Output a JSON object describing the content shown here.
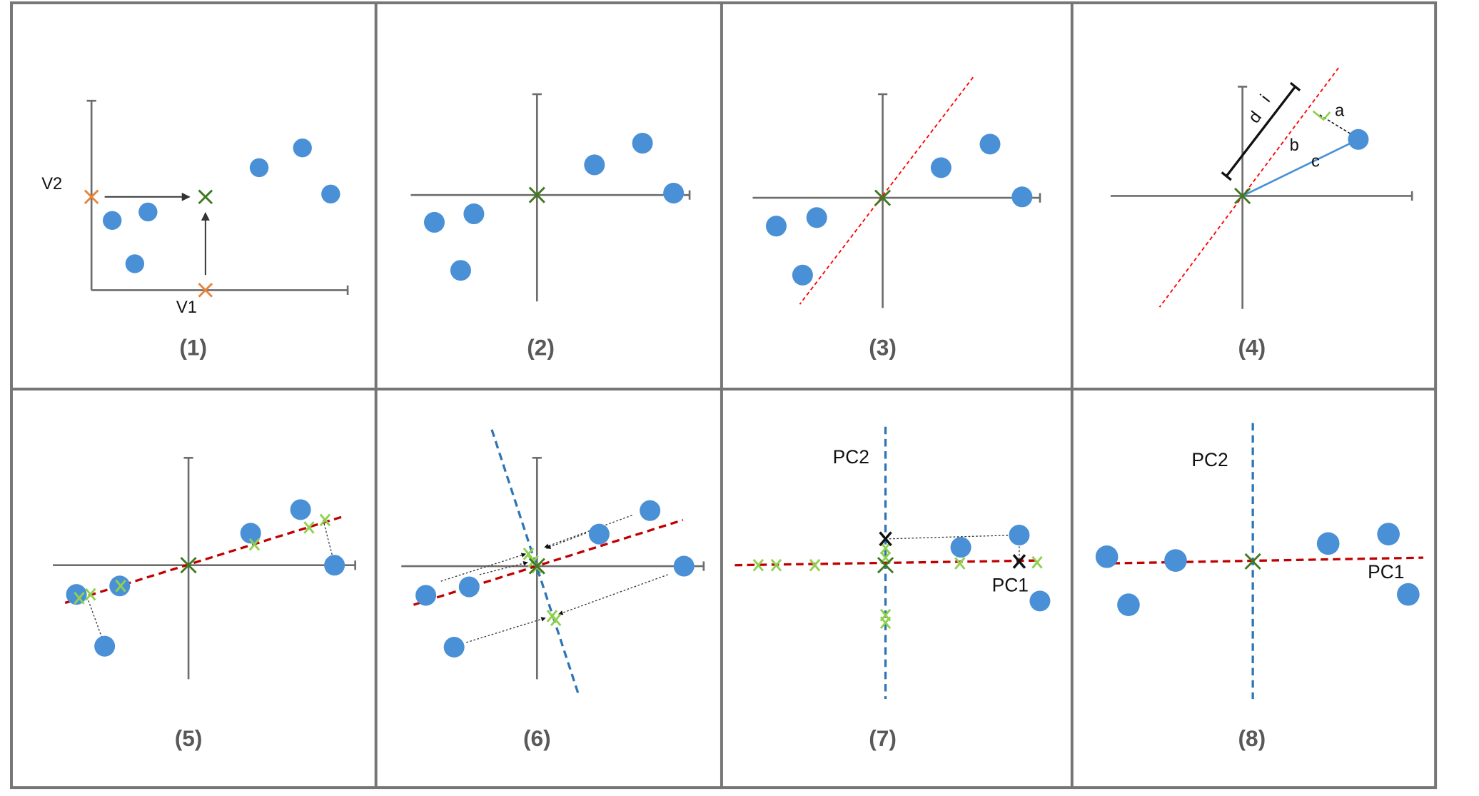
{
  "colors": {
    "grid": "#767676",
    "axis": "#6d6d6d",
    "point": "#4a90d6",
    "center_mark": "#3f7a1f",
    "mean_mark": "#e8843a",
    "projection_mark": "#8fd14f",
    "pc1_line": "#c00000",
    "pc2_line": "#2e75b6",
    "fit_line": "#ff0000",
    "right_angle": "#8fd14f",
    "text": "#111111",
    "caption": "#595959"
  },
  "panels": [
    {
      "caption": "(1)",
      "labels": {
        "v2": "V2",
        "v1": "V1"
      }
    },
    {
      "caption": "(2)"
    },
    {
      "caption": "(3)"
    },
    {
      "caption": "(4)",
      "labels": {
        "d": "d",
        "i": "i",
        "a": "a",
        "b": "b",
        "c": "c"
      }
    },
    {
      "caption": "(5)"
    },
    {
      "caption": "(6)"
    },
    {
      "caption": "(7)",
      "labels": {
        "pc2": "PC2",
        "pc1": "PC1"
      }
    },
    {
      "caption": "(8)",
      "labels": {
        "pc2": "PC2",
        "pc1": "PC1"
      }
    }
  ],
  "icons": {
    "data_point": "filled-circle",
    "marker": "x-cross"
  }
}
